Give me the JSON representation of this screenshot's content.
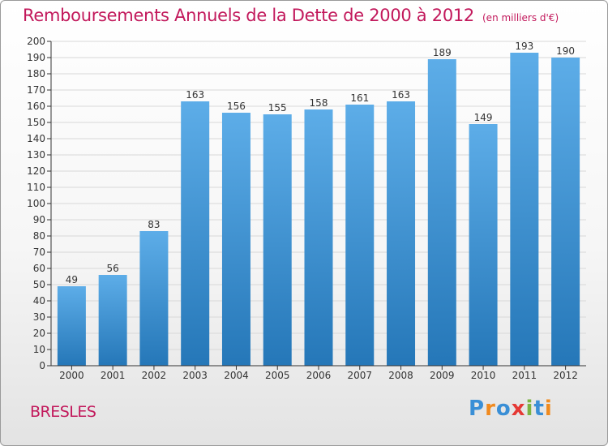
{
  "title": "Remboursements Annuels de la Dette de 2000 à 2012",
  "unit_note": "(en milliers d'€)",
  "commune": "BRESLES",
  "logo": {
    "text": "Proxiti",
    "letters": [
      {
        "char": "P",
        "color": "#3a8fd6"
      },
      {
        "char": "r",
        "color": "#f08a1e"
      },
      {
        "char": "o",
        "color": "#3a8fd6"
      },
      {
        "char": "x",
        "color": "#e53935"
      },
      {
        "char": "i",
        "color": "#7cb342"
      },
      {
        "char": "t",
        "color": "#3a8fd6"
      },
      {
        "char": "i",
        "color": "#f08a1e"
      }
    ]
  },
  "colors": {
    "title": "#c2185b",
    "bar_top": "#5dade8",
    "bar_bottom": "#2577b8",
    "axis": "#333333",
    "grid": "#d8d8d8"
  },
  "chart_data": {
    "type": "bar",
    "title": "Remboursements Annuels de la Dette de 2000 à 2012",
    "categories": [
      "2000",
      "2001",
      "2002",
      "2003",
      "2004",
      "2005",
      "2006",
      "2007",
      "2008",
      "2009",
      "2010",
      "2011",
      "2012"
    ],
    "values": [
      49,
      56,
      83,
      163,
      156,
      155,
      158,
      161,
      163,
      189,
      149,
      193,
      190
    ],
    "ylim": [
      0,
      200
    ],
    "ytick_step": 10,
    "grid": true,
    "data_labels": true
  }
}
